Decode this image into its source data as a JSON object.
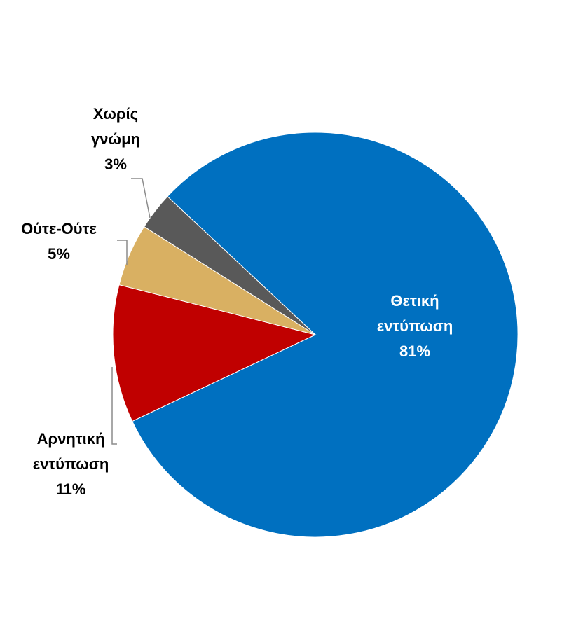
{
  "chart_data": {
    "type": "pie",
    "title": "",
    "slices": [
      {
        "label_lines": [
          "Θετική",
          "εντύπωση"
        ],
        "pct_text": "81%",
        "value": 81,
        "color": "#0070c0"
      },
      {
        "label_lines": [
          "Αρνητική",
          "εντύπωση"
        ],
        "pct_text": "11%",
        "value": 11,
        "color": "#c00000"
      },
      {
        "label_lines": [
          "Ούτε-Ούτε"
        ],
        "pct_text": "5%",
        "value": 5,
        "color": "#d9b062"
      },
      {
        "label_lines": [
          "Χωρίς",
          "γνώμη"
        ],
        "pct_text": "3%",
        "value": 3,
        "color": "#595959"
      }
    ]
  }
}
